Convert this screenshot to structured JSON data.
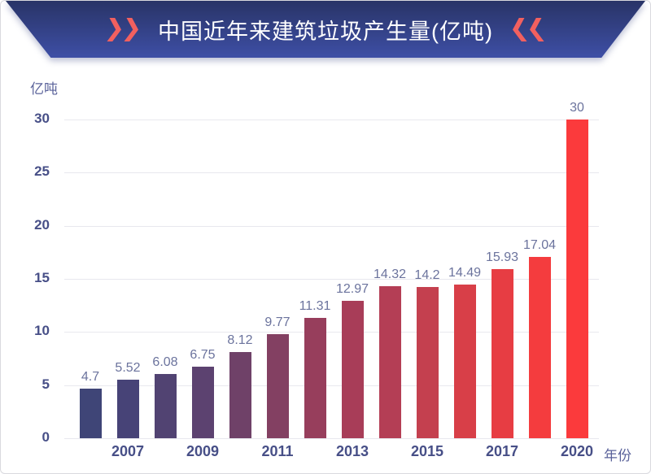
{
  "banner": {
    "title": "中国近年来建筑垃圾产生量(亿吨)",
    "accent_color": "#f2605f",
    "bg_top_color": "#293467",
    "bg_bottom_color": "#3e4fa6"
  },
  "chart_data": {
    "type": "bar",
    "title": "中国近年来建筑垃圾产生量(亿吨)",
    "ylabel_unit": "亿吨",
    "xlabel": "年份",
    "values": [
      4.7,
      5.52,
      6.08,
      6.75,
      8.12,
      9.77,
      11.31,
      12.97,
      14.32,
      14.2,
      14.49,
      15.93,
      17.04,
      30
    ],
    "value_labels": [
      "4.7",
      "5.52",
      "6.08",
      "6.75",
      "8.12",
      "9.77",
      "11.31",
      "12.97",
      "14.32",
      "14.2",
      "14.49",
      "15.93",
      "17.04",
      "30"
    ],
    "x_tick_labels": [
      "2007",
      "2009",
      "2011",
      "2013",
      "2015",
      "2017",
      "2020"
    ],
    "x_tick_bar_indices": [
      1,
      3,
      5,
      7,
      9,
      11,
      13
    ],
    "y_ticks": [
      "0",
      "5",
      "10",
      "15",
      "20",
      "25",
      "30"
    ],
    "ylim": [
      0,
      30
    ],
    "grid": true,
    "legend": false,
    "bar_colors": [
      "#3f4577",
      "#474377",
      "#514372",
      "#5c4270",
      "#6f4168",
      "#834062",
      "#973e5c",
      "#a83d58",
      "#b43e55",
      "#c4404f",
      "#d83f48",
      "#e73d43",
      "#f43c3e",
      "#fb3a3c"
    ],
    "label_color": "#6b739d",
    "axis_color": "#474f87",
    "grid_color": "#e8e8ee"
  }
}
